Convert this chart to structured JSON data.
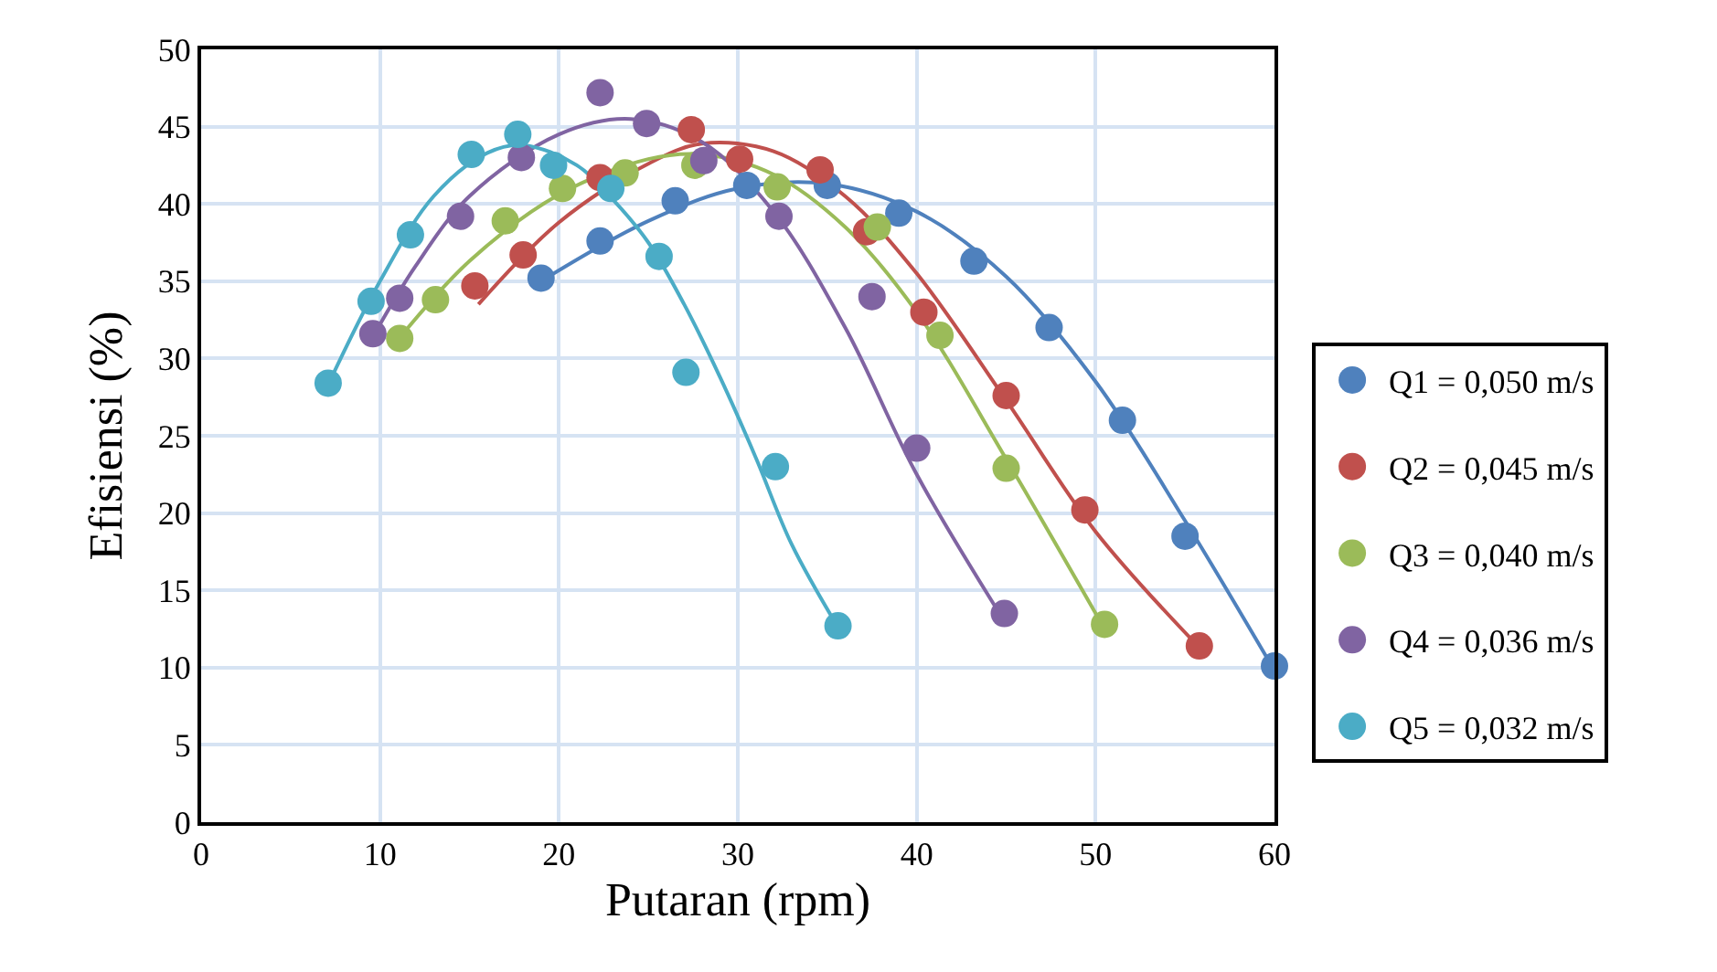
{
  "chart_data": {
    "type": "scatter",
    "xlabel": "Putaran (rpm)",
    "ylabel": "Efisiensi (%)",
    "xlim": [
      0,
      60
    ],
    "xticks": [
      0,
      10,
      20,
      30,
      40,
      50,
      60
    ],
    "ylim": [
      0,
      50
    ],
    "yticks": [
      0,
      5,
      10,
      15,
      20,
      25,
      30,
      35,
      40,
      45,
      50
    ],
    "grid": true,
    "legend": "right",
    "marker": "circle",
    "series": [
      {
        "name": "Q1 = 0,050 m/s",
        "color": "#4f81bd",
        "x": [
          19,
          22.3,
          26.5,
          30.5,
          35,
          39,
          43.2,
          47.4,
          51.5,
          55,
          60
        ],
        "values": [
          35.2,
          37.6,
          40.2,
          41.2,
          41.2,
          39.4,
          36.3,
          32,
          26,
          18.5,
          10.1
        ]
      },
      {
        "name": "Q2 = 0,045 m/s",
        "color": "#c0504d",
        "x": [
          15.3,
          18,
          22.3,
          27.4,
          30.1,
          34.6,
          37.2,
          40.4,
          45,
          49.4,
          55.8
        ],
        "values": [
          34.7,
          36.7,
          41.7,
          44.8,
          42.9,
          42.2,
          38.2,
          33,
          27.6,
          20.2,
          11.4
        ]
      },
      {
        "name": "Q3 = 0,040 m/s",
        "color": "#9bbb59",
        "x": [
          11.1,
          13.1,
          17,
          20.2,
          23.7,
          27.6,
          32.2,
          37.8,
          41.3,
          45,
          50.5
        ],
        "values": [
          31.3,
          33.8,
          38.9,
          41,
          42,
          42.5,
          41.1,
          38.5,
          31.5,
          22.9,
          12.8
        ]
      },
      {
        "name": "Q4 = 0,036 m/s",
        "color": "#8064a2",
        "x": [
          9.6,
          11.1,
          14.5,
          17.9,
          22.3,
          24.9,
          28.1,
          32.3,
          37.5,
          40,
          44.9
        ],
        "values": [
          31.6,
          33.9,
          39.2,
          43,
          47.2,
          45.2,
          42.8,
          39.2,
          34,
          24.2,
          13.5
        ]
      },
      {
        "name": "Q5 = 0,032 m/s",
        "color": "#4bacc6",
        "x": [
          7.1,
          9.5,
          11.7,
          15.1,
          17.7,
          19.7,
          22.9,
          25.6,
          27.1,
          32.1,
          35.6
        ],
        "values": [
          28.4,
          33.7,
          38,
          43.2,
          44.5,
          42.5,
          41,
          36.6,
          29.1,
          23,
          12.7
        ]
      },
      {
        "type": "line",
        "marker": "none",
        "color": "#4f81bd",
        "x": [
          19,
          25,
          30,
          35,
          40,
          45,
          50,
          55,
          60
        ],
        "values": [
          35,
          38.9,
          41,
          41.3,
          39.5,
          35.3,
          28.5,
          19.5,
          9.8
        ]
      },
      {
        "type": "line",
        "marker": "none",
        "color": "#c0504d",
        "x": [
          15.5,
          20,
          25,
          28,
          32,
          36,
          40,
          45,
          50,
          55.8
        ],
        "values": [
          33.5,
          38.8,
          42.6,
          43.9,
          43.4,
          40.5,
          35.5,
          27.3,
          18.8,
          11.3
        ]
      },
      {
        "type": "line",
        "marker": "none",
        "color": "#9bbb59",
        "x": [
          11,
          15,
          20,
          25,
          28,
          32,
          36,
          40,
          45,
          50.5
        ],
        "values": [
          31.2,
          36.3,
          40.6,
          42.9,
          43.2,
          41.9,
          38.5,
          33,
          23.5,
          12.5
        ]
      },
      {
        "type": "line",
        "marker": "none",
        "color": "#8064a2",
        "x": [
          9.6,
          12,
          15,
          20,
          24,
          28,
          32,
          36,
          40,
          44.9
        ],
        "values": [
          31.4,
          36,
          40.5,
          44.5,
          45.5,
          44,
          39.5,
          32,
          22.5,
          13
        ]
      },
      {
        "type": "line",
        "marker": "none",
        "color": "#4bacc6",
        "x": [
          7.1,
          10,
          13,
          16,
          18,
          21,
          23,
          25,
          27,
          29,
          31,
          33,
          35.6
        ],
        "values": [
          28.3,
          35,
          40.5,
          43.3,
          43.8,
          42.5,
          40.3,
          37.5,
          33.5,
          28.8,
          23.6,
          18,
          12.6
        ]
      }
    ]
  }
}
